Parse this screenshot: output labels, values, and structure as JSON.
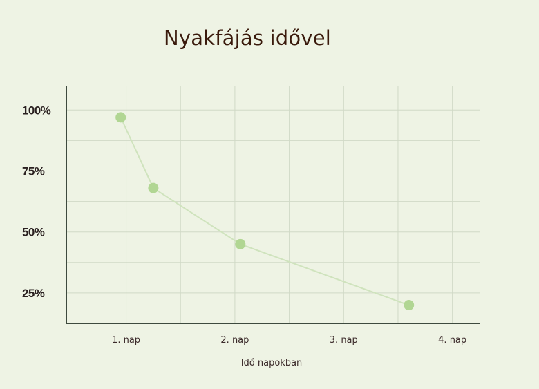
{
  "chart_data": {
    "type": "line",
    "title": "Nyakfájás idővel",
    "xlabel": "Idő napokban",
    "ylabel": "",
    "x_tick_labels": [
      "1. nap",
      "2. nap",
      "3. nap",
      "4. nap"
    ],
    "y_tick_labels": [
      "25%",
      "50%",
      "75%",
      "100%"
    ],
    "y_ticks": [
      25,
      50,
      75,
      100
    ],
    "ylim": [
      12.5,
      110
    ],
    "xlim": [
      0.45,
      4.25
    ],
    "grid": true,
    "series": [
      {
        "x": [
          0.95,
          1.25,
          2.05,
          3.6
        ],
        "y": [
          97,
          68,
          45,
          20
        ]
      }
    ],
    "colors": {
      "line": "#cfe3bd",
      "marker": "#b1d693",
      "grid": "#d0d9c6",
      "axis": "#3e4a3e",
      "background": "#eef3e4",
      "title": "#3a1a0c"
    }
  }
}
